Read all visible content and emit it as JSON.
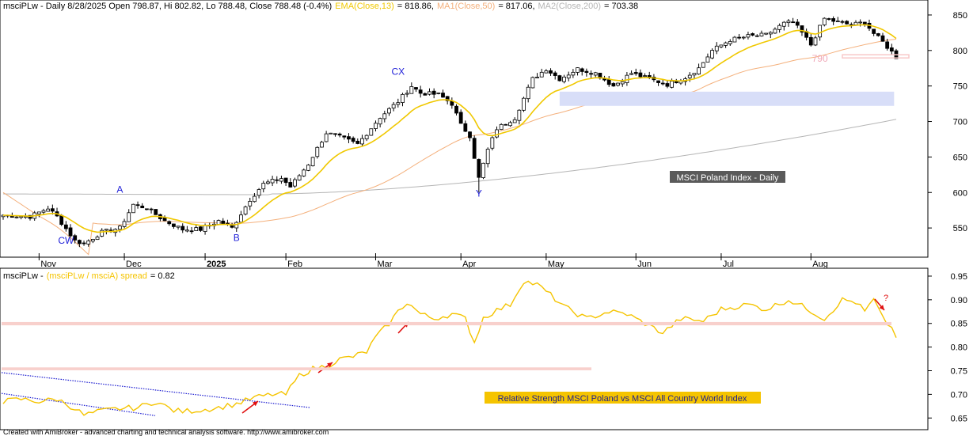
{
  "chart_data": [
    {
      "type": "candlestick",
      "header": {
        "symbol_line": "msciPLw - Daily 8/28/2025 Open 798.87, Hi 802.82, Lo 788.48, Close 788.48 (-0.4%)",
        "ema": "EMA(Close,13)",
        "ema_value": "= 818.86,",
        "ma1": "MA1(Close,50)",
        "ma1_value": "= 817.06,",
        "ma2": "MA2(Close,200)",
        "ma2_value": "= 703.38"
      },
      "ylim": [
        510,
        870
      ],
      "y_ticks": [
        550,
        600,
        650,
        700,
        750,
        800,
        850
      ],
      "x_months": [
        "Nov",
        "Dec",
        "2025",
        "Feb",
        "Mar",
        "Apr",
        "May",
        "Jun",
        "Jul",
        "Aug"
      ],
      "x_month_index": [
        8,
        27,
        45,
        63,
        83,
        102,
        121,
        141,
        160,
        180
      ],
      "candles": {
        "n": 200,
        "key_closes": [
          [
            0,
            568
          ],
          [
            6,
            566
          ],
          [
            10,
            578
          ],
          [
            12,
            566
          ],
          [
            16,
            532
          ],
          [
            18,
            528
          ],
          [
            22,
            544
          ],
          [
            26,
            550
          ],
          [
            29,
            583
          ],
          [
            32,
            578
          ],
          [
            36,
            560
          ],
          [
            40,
            548
          ],
          [
            44,
            548
          ],
          [
            48,
            560
          ],
          [
            51,
            550
          ],
          [
            55,
            590
          ],
          [
            58,
            612
          ],
          [
            62,
            620
          ],
          [
            64,
            608
          ],
          [
            68,
            640
          ],
          [
            72,
            684
          ],
          [
            75,
            678
          ],
          [
            79,
            668
          ],
          [
            84,
            706
          ],
          [
            88,
            728
          ],
          [
            91,
            750
          ],
          [
            93,
            740
          ],
          [
            97,
            738
          ],
          [
            100,
            725
          ],
          [
            102,
            695
          ],
          [
            104,
            680
          ],
          [
            106,
            620
          ],
          [
            108,
            660
          ],
          [
            110,
            690
          ],
          [
            114,
            705
          ],
          [
            118,
            760
          ],
          [
            121,
            774
          ],
          [
            124,
            760
          ],
          [
            128,
            774
          ],
          [
            132,
            768
          ],
          [
            136,
            750
          ],
          [
            140,
            768
          ],
          [
            144,
            760
          ],
          [
            148,
            752
          ],
          [
            152,
            762
          ],
          [
            155,
            775
          ],
          [
            158,
            800
          ],
          [
            162,
            815
          ],
          [
            166,
            820
          ],
          [
            170,
            822
          ],
          [
            174,
            838
          ],
          [
            176,
            840
          ],
          [
            178,
            825
          ],
          [
            180,
            808
          ],
          [
            183,
            845
          ],
          [
            186,
            840
          ],
          [
            189,
            836
          ],
          [
            192,
            840
          ],
          [
            194,
            824
          ],
          [
            196,
            812
          ],
          [
            198,
            798
          ],
          [
            199,
            788.48
          ]
        ]
      },
      "annotations": [
        {
          "text": "CW",
          "x": 14,
          "y": 528
        },
        {
          "text": "A",
          "x": 26,
          "y": 600
        },
        {
          "text": "B",
          "x": 52,
          "y": 532
        },
        {
          "text": "CX",
          "x": 88,
          "y": 766
        },
        {
          "text": "Y",
          "x": 106,
          "y": 594
        },
        {
          "text": "790",
          "x": 182,
          "y": 784
        }
      ],
      "box_label": "MSCI Poland Index - Daily"
    },
    {
      "type": "line",
      "header": {
        "title": "msciPLw -",
        "series_label": "(msciPLw / msciA) spread",
        "series_value": "= 0.82"
      },
      "ylim": [
        0.627,
        0.965
      ],
      "y_ticks": [
        0.65,
        0.7,
        0.75,
        0.8,
        0.85,
        0.9,
        0.95
      ],
      "spread": {
        "key_points": [
          [
            0,
            0.685
          ],
          [
            4,
            0.69
          ],
          [
            8,
            0.685
          ],
          [
            12,
            0.69
          ],
          [
            16,
            0.67
          ],
          [
            18,
            0.656
          ],
          [
            22,
            0.665
          ],
          [
            26,
            0.67
          ],
          [
            30,
            0.672
          ],
          [
            34,
            0.685
          ],
          [
            38,
            0.666
          ],
          [
            40,
            0.664
          ],
          [
            44,
            0.667
          ],
          [
            48,
            0.672
          ],
          [
            52,
            0.68
          ],
          [
            56,
            0.693
          ],
          [
            60,
            0.7
          ],
          [
            63,
            0.7
          ],
          [
            66,
            0.74
          ],
          [
            69,
            0.754
          ],
          [
            72,
            0.76
          ],
          [
            75,
            0.774
          ],
          [
            78,
            0.78
          ],
          [
            81,
            0.79
          ],
          [
            83,
            0.82
          ],
          [
            86,
            0.85
          ],
          [
            88,
            0.875
          ],
          [
            90,
            0.895
          ],
          [
            93,
            0.87
          ],
          [
            96,
            0.86
          ],
          [
            100,
            0.87
          ],
          [
            103,
            0.86
          ],
          [
            105,
            0.81
          ],
          [
            107,
            0.862
          ],
          [
            110,
            0.878
          ],
          [
            113,
            0.89
          ],
          [
            116,
            0.94
          ],
          [
            119,
            0.932
          ],
          [
            122,
            0.91
          ],
          [
            125,
            0.885
          ],
          [
            130,
            0.86
          ],
          [
            135,
            0.875
          ],
          [
            139,
            0.87
          ],
          [
            143,
            0.85
          ],
          [
            147,
            0.83
          ],
          [
            151,
            0.86
          ],
          [
            156,
            0.855
          ],
          [
            160,
            0.88
          ],
          [
            166,
            0.89
          ],
          [
            170,
            0.88
          ],
          [
            175,
            0.9
          ],
          [
            179,
            0.882
          ],
          [
            183,
            0.86
          ],
          [
            187,
            0.9
          ],
          [
            190,
            0.895
          ],
          [
            192,
            0.875
          ],
          [
            194,
            0.9
          ],
          [
            196,
            0.86
          ],
          [
            198,
            0.84
          ],
          [
            199,
            0.82
          ]
        ]
      },
      "annotation": "?",
      "box_label": "Relative Strength MSCI Poland vs MSCI All Country World Index"
    }
  ],
  "footer": {
    "credit": "Created with AmiBroker - advanced charting and technical analysis software. http://www.amibroker.com"
  },
  "colors": {
    "ema": "#f0c800",
    "ma1": "#f4b07c",
    "ma2": "#b5b5b5",
    "spread": "#f5c400",
    "annotation": "#1e1ed8",
    "support_zone": "#d8def8",
    "pink_line": "#f8c8c8",
    "arrow": "#e01010"
  }
}
